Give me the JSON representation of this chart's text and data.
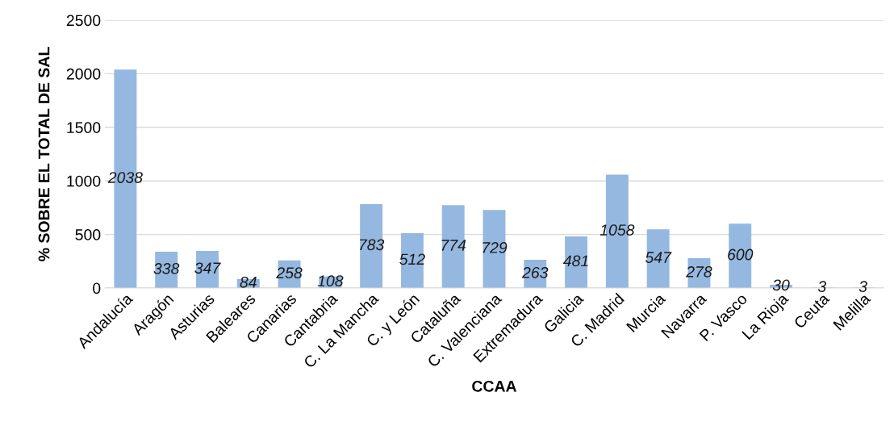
{
  "chart_data": {
    "type": "bar",
    "xlabel": "CCAA",
    "ylabel": "% SOBRE EL TOTAL DE SAL",
    "categories": [
      "Andalucía",
      "Aragón",
      "Asturias",
      "Baleares",
      "Canarias",
      "Cantabria",
      "C. La Mancha",
      "C. y León",
      "Cataluña",
      "C. Valenciana",
      "Extremadura",
      "Galicia",
      "C. Madrid",
      "Murcia",
      "Navarra",
      "P. Vasco",
      "La Rioja",
      "Ceuta",
      "Melilla"
    ],
    "values": [
      2038,
      338,
      347,
      84,
      258,
      108,
      783,
      512,
      774,
      729,
      263,
      481,
      1058,
      547,
      278,
      600,
      30,
      3,
      3
    ],
    "color": "#95b8e0",
    "ylim": [
      0,
      2500
    ],
    "yticks": [
      0,
      500,
      1000,
      1500,
      2000,
      2500
    ],
    "grid": "y",
    "data_labels": true
  }
}
